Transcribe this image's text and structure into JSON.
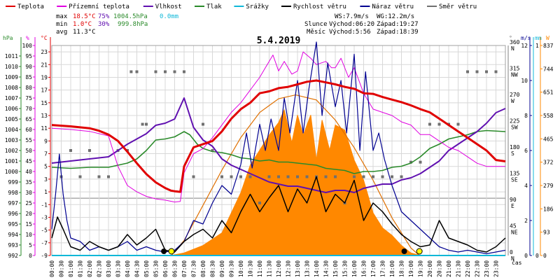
{
  "legend": [
    {
      "label": "Teplota",
      "color": "#e00000"
    },
    {
      "label": "Přízemní teplota",
      "color": "#e000e0"
    },
    {
      "label": "Vlhkost",
      "color": "#6010b0"
    },
    {
      "label": "Tlak",
      "color": "#2a8a2a"
    },
    {
      "label": "Srážky",
      "color": "#10b8d8"
    },
    {
      "label": "Rychlost větru",
      "color": "#000000"
    },
    {
      "label": "Náraz větru",
      "color": "#000090"
    },
    {
      "label": "Směr větru",
      "color": "#707070"
    }
  ],
  "stats": {
    "max": {
      "label": "max",
      "temp": "18.5°C",
      "hum": "75%",
      "press": "1004.5hPa",
      "rain": "0.0mm"
    },
    "min": {
      "label": "min",
      "temp": "1.0°C",
      "hum": "30%",
      "press": "999.8hPa"
    },
    "avg": {
      "label": "avg",
      "temp": "11.3°C"
    }
  },
  "info": {
    "ws": "WS:7.9m/s",
    "wg": "WG:12.2m/s",
    "sun_label": "Slunce",
    "sun_rise": "Východ:06:20",
    "sun_set": "Západ:19:27",
    "moon_label": "Měsíc",
    "moon_rise": "Východ:5:56",
    "moon_set": "Západ:18:39"
  },
  "date": "5.4.2019",
  "axis_titles": {
    "hpa": "hPa",
    "pct": "%",
    "degc": "°C",
    "deg": "°",
    "ms": "m/s",
    "mm": "mm",
    "wm2": "W",
    "time": "čas"
  },
  "colors": {
    "temp": "#e00000",
    "ground": "#e000e0",
    "hum": "#6010b0",
    "press": "#2a8a2a",
    "rain": "#10b8d8",
    "wind": "#000000",
    "gust": "#000090",
    "dir": "#707070",
    "solar": "#ff8800",
    "solar_theory": "#e07000",
    "grid": "#d8d8d8",
    "zero": "#808080"
  },
  "chart_data": {
    "type": "line",
    "title": "5.4.2019",
    "x_unit": "čas (h)",
    "x_ticks": [
      "00:00",
      "00:30",
      "01:00",
      "01:30",
      "02:00",
      "02:30",
      "03:00",
      "03:30",
      "04:00",
      "04:30",
      "05:00",
      "05:30",
      "06:00",
      "06:30",
      "07:00",
      "07:30",
      "08:00",
      "08:30",
      "09:00",
      "09:30",
      "10:00",
      "10:30",
      "11:00",
      "11:30",
      "12:00",
      "12:30",
      "13:00",
      "13:30",
      "14:00",
      "14:30",
      "15:00",
      "15:30",
      "16:00",
      "16:30",
      "17:00",
      "17:30",
      "18:00",
      "18:30",
      "19:00",
      "19:30",
      "20:00",
      "20:30",
      "21:00",
      "21:30",
      "22:00",
      "22:30",
      "23:00",
      "23:30"
    ],
    "axes": {
      "pressure_hpa": {
        "range": [
          992,
          1012
        ],
        "ticks": [
          "992",
          "993",
          "994",
          "995",
          "996",
          "997",
          "998",
          "999",
          "1000",
          "1001",
          "1002",
          "1003",
          "1004",
          "1005",
          "1006",
          "1007",
          "1008",
          "1009",
          "1010",
          "1011"
        ]
      },
      "humidity_pct": {
        "range": [
          0,
          100
        ],
        "ticks": [
          "0",
          "5",
          "10",
          "15",
          "20",
          "25",
          "30",
          "35",
          "40",
          "45",
          "50",
          "55",
          "60",
          "65",
          "70",
          "75",
          "80",
          "85",
          "90",
          "95",
          "100"
        ]
      },
      "temperature_c": {
        "range": [
          -9,
          24
        ],
        "ticks": [
          "-9",
          "-7",
          "-5",
          "-3",
          "-1",
          "1",
          "3",
          "5",
          "7",
          "9",
          "11",
          "13",
          "15",
          "17",
          "19",
          "21",
          "23"
        ]
      },
      "direction_deg": {
        "range": [
          0,
          360
        ],
        "ticks": [
          {
            "v": "0",
            "d": "N"
          },
          {
            "v": "45",
            "d": "NE"
          },
          {
            "v": "90",
            "d": "E"
          },
          {
            "v": "135",
            "d": "SE"
          },
          {
            "v": "180",
            "d": "S"
          },
          {
            "v": "225",
            "d": "SW"
          },
          {
            "v": "270",
            "d": "W"
          },
          {
            "v": "315",
            "d": "NW"
          },
          {
            "v": "360",
            "d": "N"
          }
        ]
      },
      "wind_ms": {
        "range": [
          0,
          12
        ],
        "ticks": [
          "0",
          "2",
          "4",
          "6",
          "8",
          "10",
          "12"
        ]
      },
      "rain_mm": {
        "range": [
          0,
          1
        ],
        "ticks": [
          "0",
          "1"
        ]
      },
      "solar_wm2": {
        "range": [
          0,
          837
        ],
        "ticks": [
          "0",
          "93",
          "186",
          "279",
          "372",
          "465",
          "558",
          "651",
          "744",
          "837"
        ]
      }
    },
    "series": [
      {
        "name": "Teplota",
        "axis": "temperature_c",
        "x": [
          0,
          1,
          2,
          2.5,
          3,
          3.5,
          4,
          4.5,
          5,
          5.5,
          6,
          6.3,
          6.5,
          6.8,
          7,
          7.5,
          8,
          8.5,
          9,
          9.5,
          10,
          10.5,
          11,
          11.5,
          12,
          12.5,
          13,
          13.5,
          14,
          14.5,
          15,
          15.5,
          16,
          16.5,
          17,
          17.5,
          18,
          18.5,
          19,
          19.5,
          20,
          20.5,
          21,
          21.5,
          22,
          22.5,
          23,
          23.5,
          24
        ],
        "y": [
          11.5,
          11.3,
          11.0,
          10.6,
          10.0,
          9.0,
          7.3,
          5.5,
          3.8,
          2.5,
          1.6,
          1.2,
          1.1,
          1.0,
          5.0,
          8.0,
          8.5,
          9.0,
          10.5,
          12.5,
          14.0,
          15.0,
          16.5,
          16.8,
          17.3,
          17.5,
          17.9,
          18.3,
          18.5,
          18.2,
          17.9,
          17.5,
          17.2,
          16.5,
          16.4,
          15.9,
          15.5,
          15.1,
          14.6,
          14.0,
          13.5,
          12.5,
          11.5,
          10.5,
          9.5,
          8.5,
          7.5,
          6.0,
          5.8
        ]
      },
      {
        "name": "Přízemní teplota",
        "axis": "temperature_c",
        "x": [
          0,
          1,
          2,
          3,
          3.5,
          4,
          4.5,
          5,
          5.5,
          6,
          6.5,
          6.8,
          7,
          7.5,
          8,
          8.5,
          9,
          9.5,
          10,
          10.5,
          11,
          11.3,
          11.7,
          12,
          12.3,
          12.7,
          13,
          13.3,
          13.7,
          14,
          14.5,
          14.8,
          15,
          15.3,
          15.7,
          16,
          16.5,
          17,
          17.5,
          18,
          18.5,
          19,
          19.5,
          20,
          20.5,
          21,
          21.5,
          22,
          22.5,
          23,
          24
        ],
        "y": [
          11.0,
          10.8,
          10.5,
          9.8,
          5.0,
          2.0,
          1.0,
          0.3,
          -0.1,
          -0.3,
          -0.6,
          -0.5,
          4.0,
          7.0,
          7.8,
          9.5,
          11.5,
          13.5,
          15.0,
          17.0,
          19.0,
          20.5,
          22.5,
          20.0,
          21.5,
          19.5,
          20.0,
          23.0,
          22.0,
          21.0,
          21.5,
          20.5,
          20.5,
          22.0,
          19.0,
          20.5,
          16.5,
          14.0,
          13.5,
          13.0,
          12.0,
          11.5,
          10.0,
          10.0,
          9.0,
          8.0,
          7.5,
          6.5,
          5.5,
          5.0,
          5.0
        ]
      },
      {
        "name": "Vlhkost",
        "axis": "humidity_pct",
        "x": [
          0,
          1,
          2,
          3,
          4,
          5,
          5.5,
          6,
          6.5,
          7,
          7.5,
          8,
          8.5,
          9,
          9.5,
          10,
          10.5,
          11,
          11.5,
          12,
          12.5,
          13,
          13.5,
          14,
          14.5,
          15,
          15.5,
          16,
          16.5,
          17,
          17.5,
          18,
          18.5,
          19,
          19.5,
          20,
          20.5,
          21,
          21.5,
          22,
          22.5,
          23,
          23.5,
          24
        ],
        "y": [
          44,
          45,
          46,
          47,
          53,
          58,
          62,
          63,
          65,
          75,
          61,
          55,
          52,
          46,
          43,
          41,
          39,
          37,
          35,
          34,
          33,
          33,
          32,
          31,
          30,
          31,
          31,
          30,
          32,
          33,
          34,
          34,
          36,
          37,
          39,
          42,
          45,
          50,
          53,
          56,
          59,
          63,
          68,
          70
        ]
      },
      {
        "name": "Tlak",
        "axis": "pressure_hpa",
        "x": [
          0,
          1,
          2,
          3,
          4,
          4.5,
          5,
          5.5,
          6,
          6.5,
          7,
          7.3,
          7.7,
          8,
          8.5,
          9,
          9.5,
          10,
          10.5,
          11,
          11.5,
          12,
          12.5,
          13,
          13.5,
          14,
          14.5,
          15,
          15.5,
          16,
          16.5,
          17,
          17.5,
          18,
          18.5,
          19,
          19.5,
          20,
          20.5,
          21,
          21.5,
          22,
          22.5,
          23,
          24
        ],
        "y": [
          1000.4,
          1000.3,
          1000.4,
          1000.4,
          1000.8,
          1001.2,
          1002,
          1003.0,
          1003.1,
          1003.3,
          1003.8,
          1003.5,
          1002.6,
          1002.2,
          1001.9,
          1001.8,
          1001.6,
          1001.3,
          1001.2,
          1001.0,
          1001.1,
          1000.9,
          1000.9,
          1000.8,
          1000.7,
          1000.6,
          1000.3,
          1000.2,
          1000.1,
          999.8,
          1000.0,
          1000.0,
          1000.1,
          1000.4,
          1000.5,
          1000.8,
          1001.4,
          1002.2,
          1002.6,
          1003.1,
          1003.3,
          1003.5,
          1003.8,
          1003.9,
          1003.8
        ]
      },
      {
        "name": "Rychlost větru",
        "axis": "wind_ms",
        "x": [
          0,
          0.3,
          0.6,
          1,
          1.5,
          2,
          2.5,
          3,
          3.5,
          4,
          4.5,
          5,
          5.5,
          6,
          6.5,
          7,
          7.5,
          8,
          8.5,
          9,
          9.5,
          10,
          10.5,
          11,
          11.5,
          12,
          12.5,
          13,
          13.5,
          14,
          14.5,
          15,
          15.5,
          16,
          16.5,
          17,
          17.5,
          18,
          18.5,
          19,
          19.5,
          20,
          20.5,
          21,
          21.5,
          22,
          22.5,
          23,
          23.5,
          24
        ],
        "y": [
          1.0,
          2.2,
          1.5,
          0.5,
          0.3,
          0.8,
          0.5,
          0.3,
          0.5,
          1.2,
          0.6,
          1.0,
          1.5,
          0.3,
          0.2,
          0.8,
          1.2,
          1.5,
          1.0,
          2.0,
          1.3,
          2.5,
          3.5,
          2.5,
          3.3,
          4.0,
          2.5,
          3.8,
          3.0,
          4.5,
          2.5,
          3.5,
          3.0,
          4.3,
          2.0,
          3.0,
          2.5,
          1.8,
          1.2,
          0.8,
          0.5,
          0.6,
          2.0,
          1.0,
          0.8,
          0.6,
          0.3,
          0.2,
          0.5,
          1.0
        ]
      },
      {
        "name": "Náraz větru",
        "axis": "wind_ms",
        "x": [
          0,
          0.2,
          0.4,
          0.6,
          0.8,
          1,
          1.5,
          2,
          2.5,
          3,
          3.5,
          4,
          4.5,
          5,
          5.5,
          6,
          6.5,
          7,
          7.5,
          8,
          8.5,
          9,
          9.5,
          10,
          10.3,
          10.6,
          11,
          11.3,
          11.6,
          12,
          12.3,
          12.6,
          13,
          13.3,
          13.6,
          14,
          14.3,
          14.6,
          15,
          15.3,
          15.6,
          16,
          16.3,
          16.6,
          17,
          17.3,
          17.6,
          18,
          18.5,
          19,
          19.5,
          20,
          20.5,
          21,
          21.5,
          22,
          22.5,
          23,
          23.5,
          24
        ],
        "y": [
          1.5,
          3.5,
          5.8,
          3.5,
          2.0,
          1.0,
          0.8,
          0.3,
          0.5,
          0.3,
          0.5,
          0.8,
          0.3,
          0.5,
          0.3,
          0.2,
          0.3,
          0.8,
          2.0,
          1.8,
          3.0,
          4.0,
          3.5,
          5.2,
          7.0,
          5.0,
          7.5,
          6.0,
          7.8,
          6.0,
          9.0,
          7.0,
          10.0,
          7.0,
          9.5,
          12.2,
          8.0,
          11.0,
          8.5,
          10.0,
          7.0,
          11.5,
          6.0,
          10.5,
          6.0,
          7.0,
          5.5,
          4.0,
          2.5,
          2.0,
          1.5,
          1.0,
          0.5,
          0.3,
          0.2,
          0.3,
          0.2,
          0.1,
          0.2,
          0.3
        ]
      },
      {
        "name": "Srážky",
        "axis": "rain_mm",
        "x": [
          0,
          24
        ],
        "y": [
          0,
          0
        ]
      },
      {
        "name": "Sluneční záření",
        "axis": "solar_wm2",
        "x": [
          6.3,
          7,
          8,
          9,
          10,
          10.5,
          11,
          11.5,
          12,
          12.3,
          12.7,
          13,
          13.3,
          13.7,
          14,
          14.3,
          14.7,
          15,
          15.5,
          16,
          16.5,
          17,
          17.5,
          18,
          18.5,
          19,
          19.5
        ],
        "y": [
          0,
          10,
          40,
          90,
          250,
          360,
          420,
          480,
          530,
          580,
          450,
          560,
          480,
          560,
          380,
          540,
          420,
          520,
          500,
          380,
          300,
          170,
          110,
          80,
          40,
          10,
          0
        ]
      },
      {
        "name": "Teoretické záření",
        "axis": "solar_wm2",
        "x": [
          6.33,
          7,
          8,
          9,
          10,
          11,
          12,
          12.9,
          14,
          15,
          16,
          17,
          18,
          19,
          19.45
        ],
        "y": [
          0,
          60,
          200,
          340,
          470,
          570,
          625,
          640,
          620,
          540,
          430,
          300,
          150,
          30,
          0
        ]
      }
    ],
    "wind_direction": {
      "axis": "direction_deg",
      "x": [
        0.5,
        1,
        1.5,
        2,
        2.5,
        3,
        3.5,
        4,
        4.2,
        4.5,
        4.8,
        5,
        5.5,
        6,
        6.5,
        7,
        7.5,
        8,
        8.5,
        9,
        9.5,
        10,
        10.5,
        11,
        11.5,
        12,
        12.5,
        13,
        13.5,
        14,
        14.5,
        15,
        15.5,
        16,
        16.5,
        17,
        17.5,
        18,
        18.5,
        19,
        19.5,
        20,
        20.5,
        21,
        21.5,
        22,
        22.5,
        23,
        23.5
      ],
      "y": [
        135,
        180,
        135,
        180,
        135,
        135,
        180,
        180,
        315,
        315,
        225,
        225,
        315,
        315,
        315,
        315,
        135,
        225,
        180,
        135,
        135,
        135,
        135,
        90,
        135,
        135,
        135,
        135,
        135,
        135,
        135,
        135,
        90,
        135,
        135,
        135,
        135,
        135,
        135,
        160,
        160,
        225,
        225,
        225,
        225,
        315,
        315,
        315,
        315
      ]
    },
    "markers": [
      {
        "name": "moonrise",
        "x": 5.93
      },
      {
        "name": "sunrise",
        "x": 6.33
      },
      {
        "name": "moonset",
        "x": 18.65
      },
      {
        "name": "sunset",
        "x": 19.45
      }
    ],
    "grid": true,
    "legend_position": "top"
  }
}
